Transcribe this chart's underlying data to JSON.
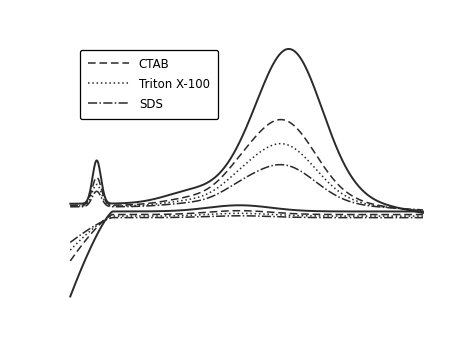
{
  "legend_entries": [
    "CTAB",
    "Triton X-100",
    "SDS"
  ],
  "line_color": "#2a2a2a",
  "background_color": "#ffffff",
  "figsize": [
    4.74,
    3.42
  ],
  "dpi": 100,
  "lw_solid": 1.4,
  "lw_other": 1.1
}
